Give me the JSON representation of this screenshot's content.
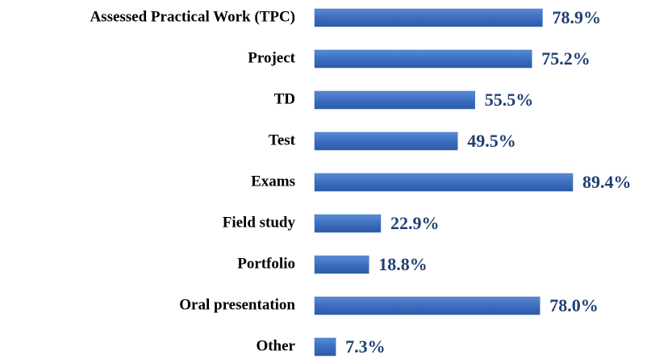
{
  "chart_data": {
    "type": "bar",
    "orientation": "horizontal",
    "categories": [
      "Assessed Practical Work (TPC)",
      "Project",
      "TD",
      "Test",
      "Exams",
      "Field study",
      "Portfolio",
      "Oral presentation",
      "Other"
    ],
    "values": [
      78.9,
      75.2,
      55.5,
      49.5,
      89.4,
      22.9,
      18.8,
      78.0,
      7.3
    ],
    "value_labels": [
      "78.9%",
      "75.2%",
      "55.5%",
      "49.5%",
      "89.4%",
      "22.9%",
      "18.8%",
      "78.0%",
      "7.3%"
    ],
    "color": "#3c6fc0"
  }
}
